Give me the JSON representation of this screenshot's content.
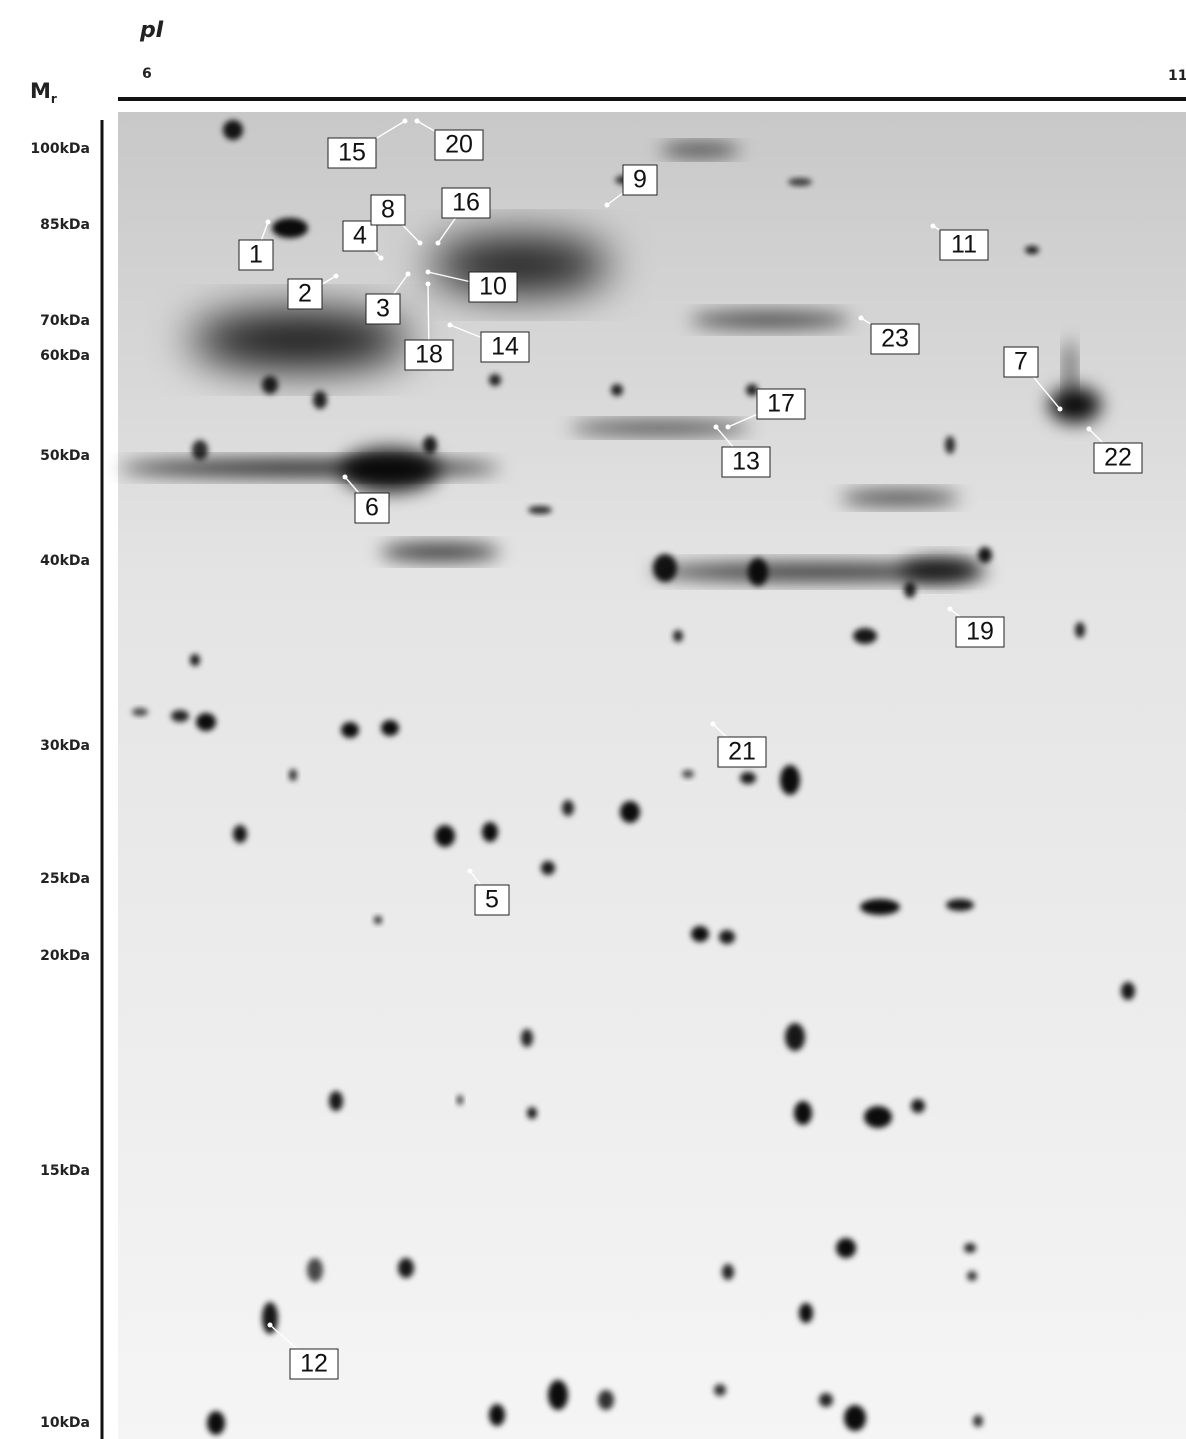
{
  "header": {
    "pi_axis": {
      "symbol": "pI",
      "ticks": [
        "6",
        "11"
      ]
    },
    "mr_axis": {
      "symbol": "M",
      "subscript": "r",
      "ticks": [
        "100kDa",
        "85kDa",
        "70kDa",
        "60kDa",
        "50kDa",
        "40kDa",
        "30kDa",
        "25kDa",
        "20kDa",
        "15kDa",
        "10kDa"
      ]
    }
  },
  "spots": [
    "1",
    "2",
    "3",
    "4",
    "5",
    "6",
    "7",
    "8",
    "9",
    "10",
    "11",
    "12",
    "13",
    "14",
    "15",
    "16",
    "17",
    "18",
    "19",
    "20",
    "21",
    "22",
    "23"
  ]
}
